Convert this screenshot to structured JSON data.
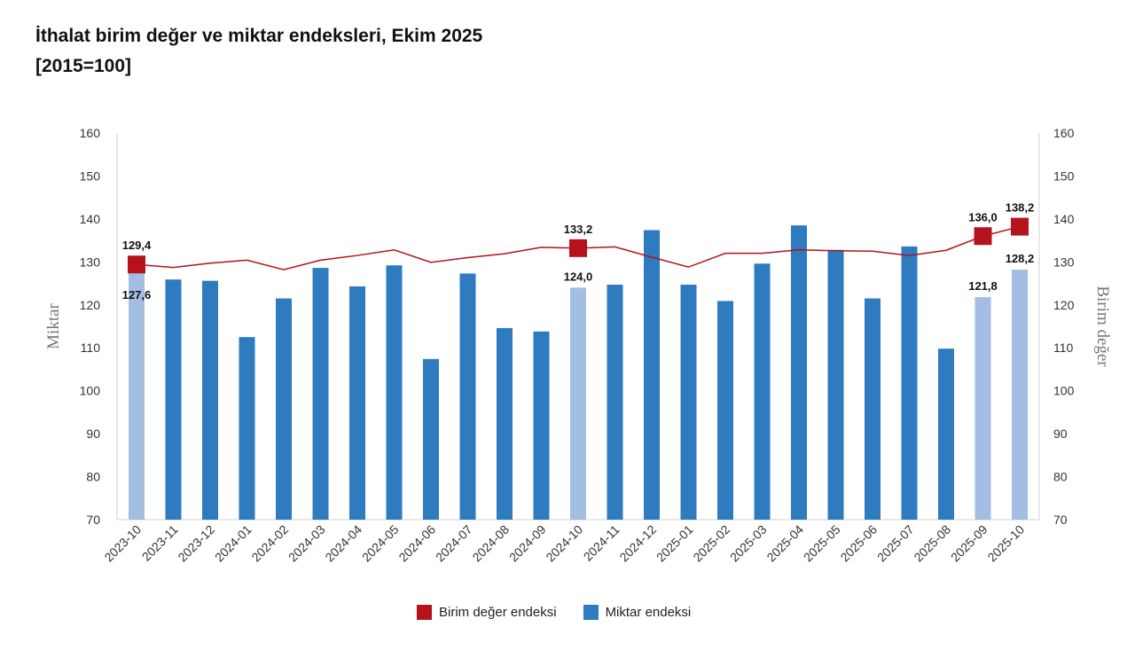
{
  "title_line1": "İthalat birim değer ve miktar endeksleri, Ekim 2025",
  "title_line2": "[2015=100]",
  "chart_data": {
    "type": "bar+line",
    "categories": [
      "2023-10",
      "2023-11",
      "2023-12",
      "2024-01",
      "2024-02",
      "2024-03",
      "2024-04",
      "2024-05",
      "2024-06",
      "2024-07",
      "2024-08",
      "2024-09",
      "2024-10",
      "2024-11",
      "2024-12",
      "2025-01",
      "2025-02",
      "2025-03",
      "2025-04",
      "2025-05",
      "2025-06",
      "2025-07",
      "2025-08",
      "2025-09",
      "2025-10"
    ],
    "series": [
      {
        "name": "Birim değer endeksi",
        "type": "line",
        "axis": "right",
        "color": "#b5121b",
        "values": [
          129.4,
          128.7,
          129.7,
          130.4,
          128.2,
          130.4,
          131.5,
          132.8,
          129.9,
          131.0,
          131.9,
          133.4,
          133.2,
          133.5,
          131.1,
          128.8,
          132.0,
          132.0,
          132.8,
          132.6,
          132.5,
          131.5,
          132.7,
          136.0,
          138.2
        ],
        "labels": {
          "0": "129,4",
          "12": "133,2",
          "23": "136,0",
          "24": "138,2"
        }
      },
      {
        "name": "Miktar endeksi",
        "type": "bar",
        "axis": "left",
        "color": "#2e7bbf",
        "highlight_color": "#a3bde3",
        "highlighted": [
          0,
          12,
          23,
          24
        ],
        "values": [
          127.6,
          125.9,
          125.6,
          112.5,
          121.5,
          128.6,
          124.3,
          129.2,
          107.4,
          127.3,
          114.6,
          113.8,
          124.0,
          124.7,
          137.4,
          124.7,
          120.9,
          129.6,
          138.5,
          132.8,
          121.5,
          133.6,
          109.8,
          121.8,
          128.2
        ],
        "labels": {
          "0": "127,6",
          "12": "124,0",
          "23": "121,8",
          "24": "128,2"
        }
      }
    ],
    "ylabel_left": "Miktar",
    "ylabel_right": "Birim değer",
    "ylim": [
      70,
      160
    ],
    "yticks": [
      70,
      80,
      90,
      100,
      110,
      120,
      130,
      140,
      150,
      160
    ],
    "grid": false,
    "legend_position": "bottom"
  }
}
